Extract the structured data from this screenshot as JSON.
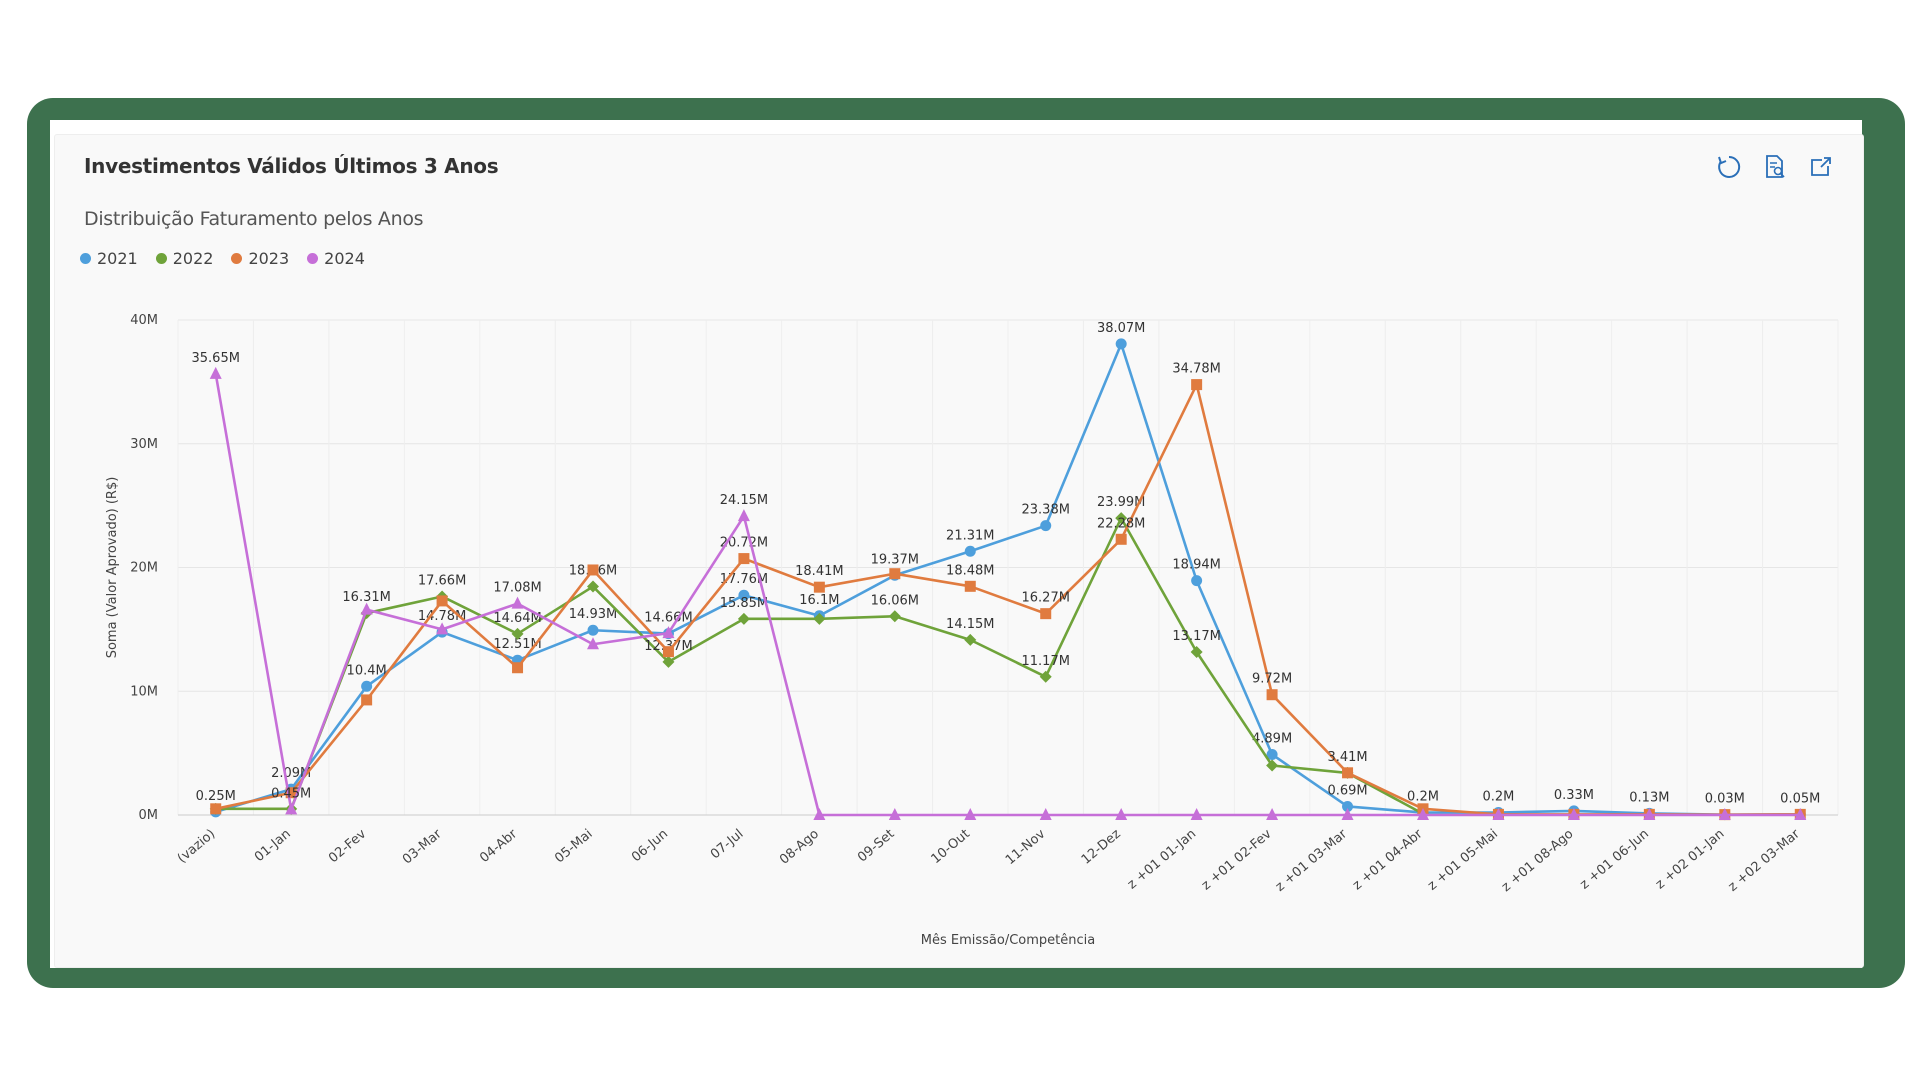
{
  "panel": {
    "title": "Investimentos Válidos Últimos 3 Anos",
    "subtitle": "Distribuição Faturamento pelos Anos",
    "toolbar": [
      {
        "icon": "refresh-icon",
        "name": "refresh-button"
      },
      {
        "icon": "document-search-icon",
        "name": "view-data-button"
      },
      {
        "icon": "expand-icon",
        "name": "expand-button"
      }
    ]
  },
  "chart_data": {
    "type": "line",
    "xlabel": "Mês Emissão/Competência",
    "ylabel": "Soma (Valor Aprovado) (R$)",
    "ylim": [
      0,
      40
    ],
    "yticks": [
      0,
      10,
      20,
      30,
      40
    ],
    "ytick_labels": [
      "0M",
      "10M",
      "20M",
      "30M",
      "40M"
    ],
    "grid": true,
    "legend_position": "top-left",
    "categories": [
      "(vazio)",
      "01-Jan",
      "02-Fev",
      "03-Mar",
      "04-Abr",
      "05-Mai",
      "06-Jun",
      "07-Jul",
      "08-Ago",
      "09-Set",
      "10-Out",
      "11-Nov",
      "12-Dez",
      "z +01 01-Jan",
      "z +01 02-Fev",
      "z +01 03-Mar",
      "z +01 04-Abr",
      "z +01 05-Mai",
      "z +01 08-Ago",
      "z +01 06-Jun",
      "z +02 01-Jan",
      "z +02 03-Mar"
    ],
    "series": [
      {
        "name": "2021",
        "color": "#4e9fdc",
        "marker": "circle",
        "values": [
          0.25,
          2.09,
          10.4,
          14.78,
          12.51,
          14.93,
          14.66,
          17.76,
          16.1,
          19.37,
          21.31,
          23.38,
          38.07,
          18.94,
          4.89,
          0.69,
          0.2,
          0.2,
          0.33,
          0.13,
          0.03,
          0.05
        ],
        "labels": [
          "0.25M",
          "2.09M",
          "10.4M",
          "14.78M",
          "12.51M",
          "14.93M",
          "14.66M",
          "17.76M",
          "16.1M",
          "19.37M",
          "21.31M",
          "23.38M",
          "38.07M",
          "18.94M",
          "4.89M",
          "0.69M",
          "0.2M",
          "0.2M",
          "0.33M",
          "0.13M",
          "0.03M",
          "0.05M"
        ]
      },
      {
        "name": "2022",
        "color": "#6fa33a",
        "marker": "diamond",
        "values": [
          0.5,
          0.5,
          16.31,
          17.66,
          14.64,
          18.46,
          12.37,
          15.85,
          15.85,
          16.06,
          14.15,
          11.17,
          23.99,
          13.17,
          4.0,
          3.4,
          0.1,
          null,
          null,
          null,
          null,
          null
        ],
        "labels": [
          null,
          null,
          "16.31M",
          "17.66M",
          "14.64M",
          "18.46M",
          "12.37M",
          "15.85M",
          null,
          "16.06M",
          "14.15M",
          "11.17M",
          "23.99M",
          "13.17M",
          null,
          null,
          null,
          null,
          null,
          null,
          null,
          null
        ]
      },
      {
        "name": "2023",
        "color": "#e07b3f",
        "marker": "square",
        "values": [
          0.5,
          1.8,
          9.3,
          17.3,
          11.9,
          19.8,
          13.2,
          20.72,
          18.41,
          19.5,
          18.48,
          16.27,
          22.28,
          34.78,
          9.72,
          3.41,
          0.5,
          0.05,
          0.05,
          0.05,
          0.03,
          0.05
        ],
        "labels": [
          null,
          null,
          null,
          null,
          null,
          null,
          null,
          "20.72M",
          "18.41M",
          null,
          "18.48M",
          "16.27M",
          "22.28M",
          "34.78M",
          "9.72M",
          "3.41M",
          null,
          null,
          null,
          null,
          null,
          null
        ]
      },
      {
        "name": "2024",
        "color": "#c66fd8",
        "marker": "triangle",
        "values": [
          35.65,
          0.45,
          16.6,
          15.0,
          17.08,
          13.8,
          14.7,
          24.15,
          0,
          0,
          0,
          0,
          0,
          0,
          0,
          0,
          0,
          0,
          0,
          0,
          0,
          0
        ],
        "labels": [
          "35.65M",
          "0.45M",
          null,
          null,
          "17.08M",
          null,
          null,
          "24.15M",
          null,
          null,
          null,
          null,
          null,
          null,
          null,
          null,
          null,
          null,
          null,
          null,
          null,
          null
        ]
      }
    ]
  }
}
